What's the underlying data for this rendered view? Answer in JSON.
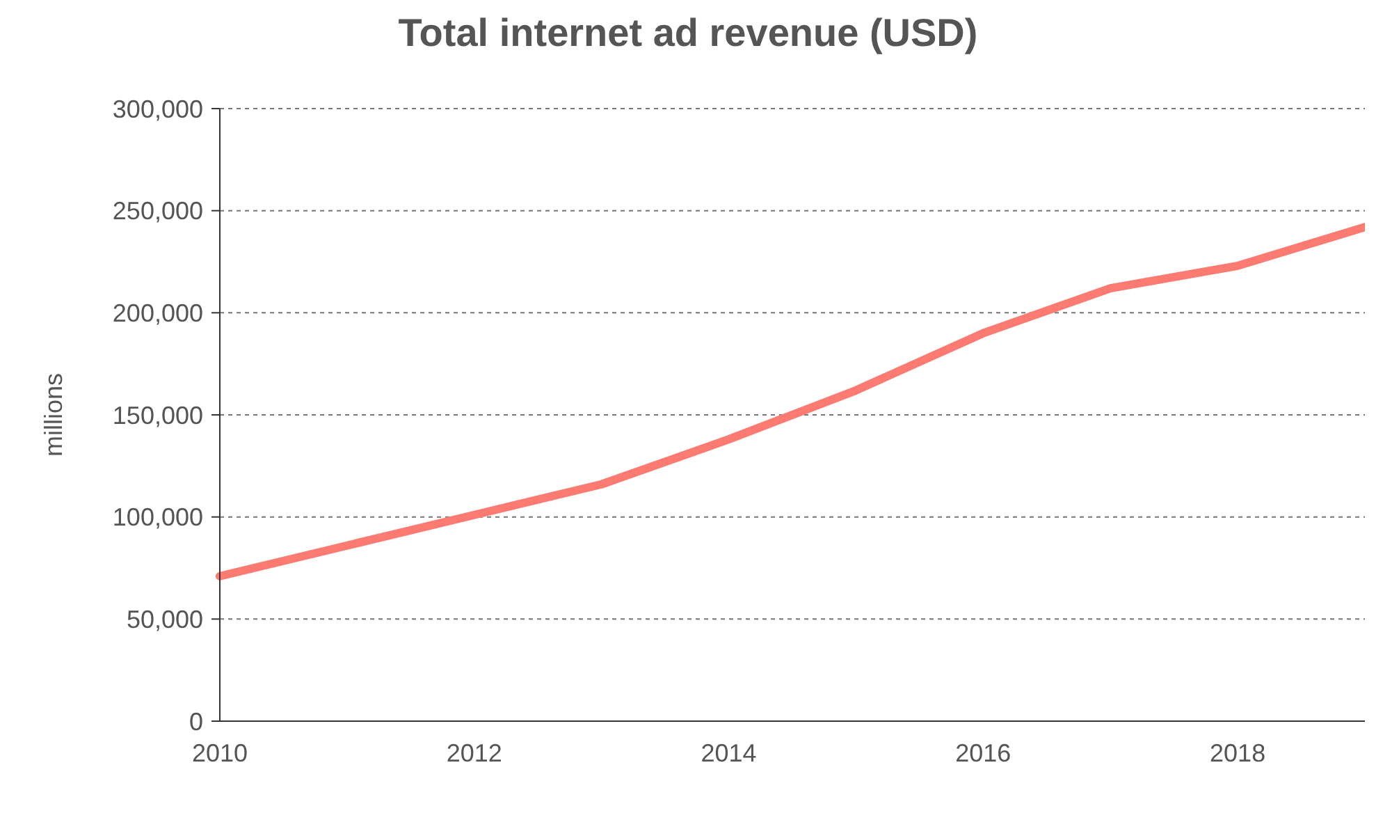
{
  "chart_data": {
    "type": "line",
    "title": "Total internet ad revenue (USD)",
    "ylabel": "millions",
    "categories": [
      "2010",
      null,
      "2012",
      null,
      "2014",
      null,
      "2016",
      null,
      "2018",
      null
    ],
    "series": [
      {
        "color": "#fb7b73",
        "values": [
          71000,
          86000,
          101000,
          116000,
          138000,
          162000,
          190000,
          212000,
          223000,
          242000
        ]
      }
    ],
    "ylim": [
      0,
      300000
    ],
    "yticks": [
      0,
      {
        "value": 50000,
        "label": "50,000"
      },
      {
        "value": 100000,
        "label": "100,000"
      },
      {
        "value": 150000,
        "label": "150,000"
      },
      {
        "value": 200000,
        "label": "200,000"
      },
      {
        "value": 250000,
        "label": "250,000"
      },
      {
        "value": 300000,
        "label": "300,000"
      }
    ],
    "grid": "y",
    "marker": "none",
    "line_style": "solid"
  }
}
